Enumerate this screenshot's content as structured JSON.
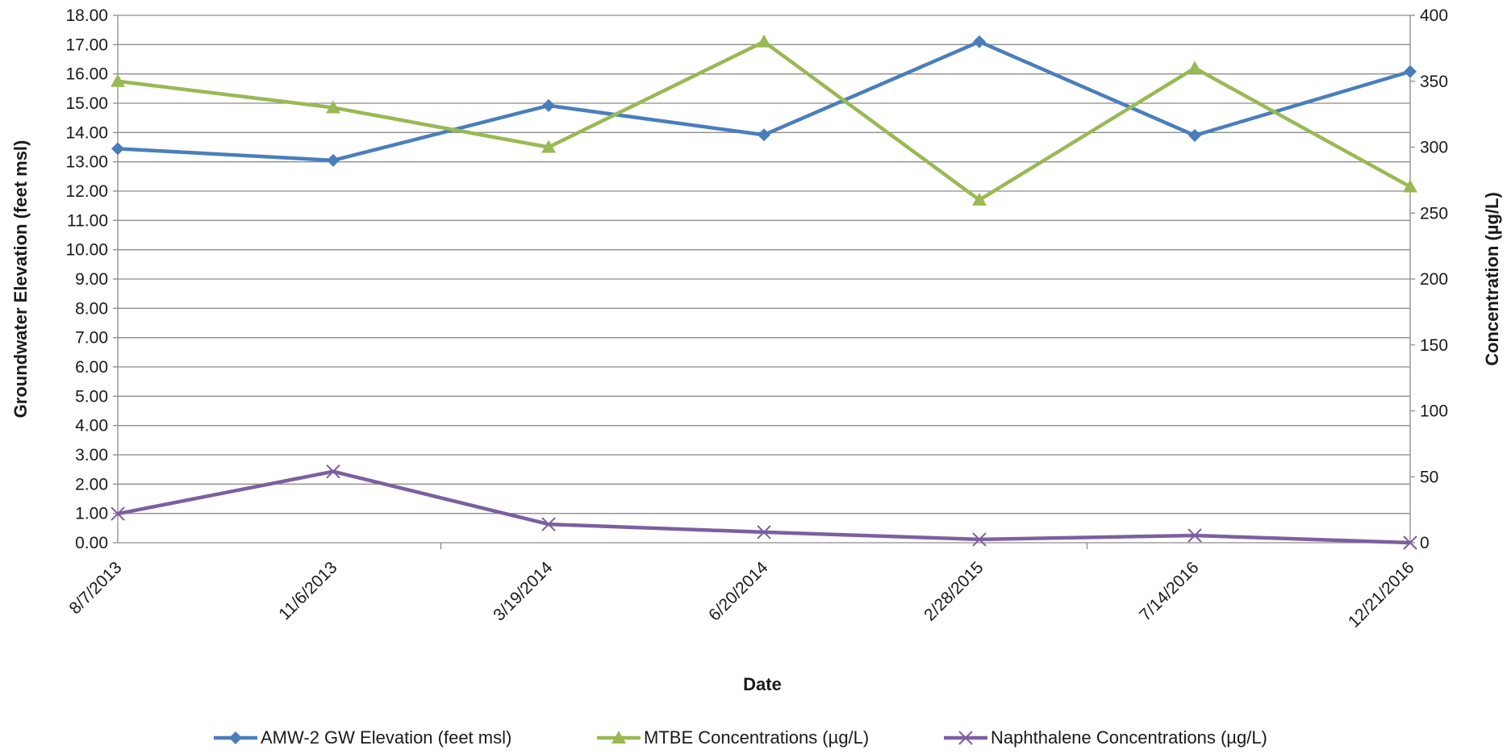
{
  "chart_data": {
    "type": "line",
    "categories": [
      "8/7/2013",
      "11/6/2013",
      "3/19/2014",
      "6/20/2014",
      "2/28/2015",
      "7/14/2016",
      "12/21/2016"
    ],
    "xlabel": "Date",
    "ylabel_left": "Groundwater Elevation (feet msl)",
    "ylabel_right": "Concentration (µg/L)",
    "ylim_left": [
      0,
      18
    ],
    "ylim_right": [
      0,
      400
    ],
    "left_ticks": [
      "0.00",
      "1.00",
      "2.00",
      "3.00",
      "4.00",
      "5.00",
      "6.00",
      "7.00",
      "8.00",
      "9.00",
      "10.00",
      "11.00",
      "12.00",
      "13.00",
      "14.00",
      "15.00",
      "16.00",
      "17.00",
      "18.00"
    ],
    "right_ticks": [
      "0",
      "50",
      "100",
      "150",
      "200",
      "250",
      "300",
      "350",
      "400"
    ],
    "grid": true,
    "legend_position": "bottom",
    "series": [
      {
        "name": "AMW-2 GW Elevation (feet msl)",
        "axis": "left",
        "color": "#4a7ebb",
        "marker": "diamond",
        "values": [
          13.45,
          13.05,
          14.92,
          13.92,
          17.1,
          13.9,
          16.08
        ]
      },
      {
        "name": "MTBE Concentrations (µg/L)",
        "axis": "right",
        "color": "#98b954",
        "marker": "triangle",
        "values": [
          350,
          330,
          300,
          380,
          260,
          360,
          270
        ]
      },
      {
        "name": "Naphthalene Concentrations (µg/L)",
        "axis": "right",
        "color": "#7d5fa0",
        "marker": "x",
        "values": [
          22,
          54,
          14,
          8,
          2.5,
          5.5,
          0
        ]
      }
    ]
  }
}
